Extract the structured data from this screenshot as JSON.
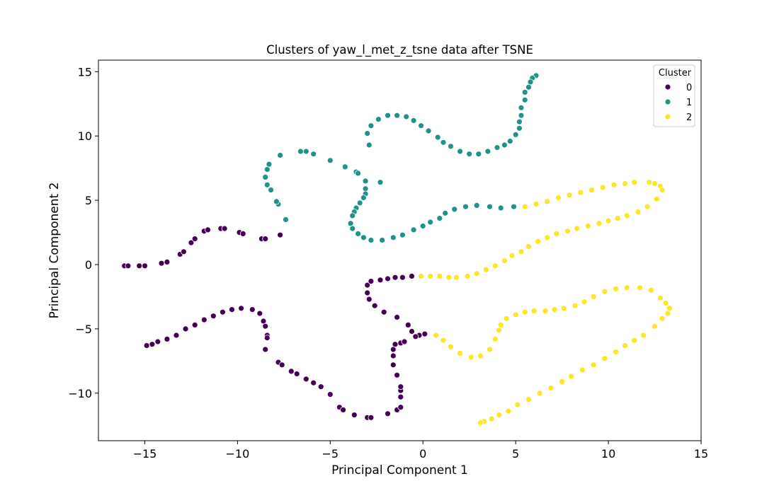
{
  "chart_data": {
    "type": "scatter",
    "title": "Clusters of yaw_l_met_z_tsne data after TSNE",
    "xlabel": "Principal Component 1",
    "ylabel": "Principal Component 2",
    "xlim": [
      -17.5,
      15
    ],
    "ylim": [
      -13.7,
      15.9
    ],
    "xticks": [
      -15,
      -10,
      -5,
      0,
      5,
      10,
      15
    ],
    "yticks": [
      -10,
      -5,
      0,
      5,
      10,
      15
    ],
    "xtick_labels": [
      "−15",
      "−10",
      "−5",
      "0",
      "5",
      "10",
      "15"
    ],
    "ytick_labels": [
      "−10",
      "−5",
      "0",
      "5",
      "10",
      "15"
    ],
    "grid": false,
    "legend": {
      "title": "Cluster",
      "placement": "top-right"
    },
    "series": [
      {
        "name": "0",
        "color": "#440154",
        "points": [
          [
            -16.1,
            -0.1
          ],
          [
            -15.9,
            -0.1
          ],
          [
            -15.3,
            -0.1
          ],
          [
            -15.0,
            -0.1
          ],
          [
            -14.1,
            0.1
          ],
          [
            -13.8,
            0.2
          ],
          [
            -13.1,
            0.8
          ],
          [
            -12.9,
            1.0
          ],
          [
            -12.5,
            1.7
          ],
          [
            -12.3,
            2.0
          ],
          [
            -11.8,
            2.6
          ],
          [
            -11.6,
            2.7
          ],
          [
            -10.9,
            2.8
          ],
          [
            -10.7,
            2.8
          ],
          [
            -9.9,
            2.5
          ],
          [
            -9.7,
            2.4
          ],
          [
            -8.7,
            2.0
          ],
          [
            -8.5,
            2.0
          ],
          [
            -7.7,
            2.3
          ],
          [
            -3.0,
            -1.6
          ],
          [
            -2.8,
            -1.3
          ],
          [
            -2.3,
            -1.2
          ],
          [
            -1.9,
            -1.1
          ],
          [
            -1.5,
            -1.0
          ],
          [
            -1.1,
            -1.0
          ],
          [
            -0.6,
            -0.9
          ],
          [
            -3.0,
            -2.2
          ],
          [
            -2.9,
            -2.7
          ],
          [
            -2.6,
            -3.2
          ],
          [
            -2.1,
            -3.7
          ],
          [
            -1.4,
            -4.1
          ],
          [
            -0.8,
            -4.7
          ],
          [
            -0.6,
            -5.2
          ],
          [
            -0.2,
            -5.5
          ],
          [
            0.1,
            -5.4
          ],
          [
            -14.9,
            -6.3
          ],
          [
            -14.6,
            -6.2
          ],
          [
            -14.3,
            -6.0
          ],
          [
            -13.8,
            -5.8
          ],
          [
            -13.3,
            -5.5
          ],
          [
            -12.8,
            -5.0
          ],
          [
            -12.3,
            -4.7
          ],
          [
            -11.8,
            -4.3
          ],
          [
            -11.3,
            -4.0
          ],
          [
            -10.8,
            -3.7
          ],
          [
            -10.3,
            -3.5
          ],
          [
            -9.8,
            -3.4
          ],
          [
            -9.2,
            -3.5
          ],
          [
            -8.8,
            -3.8
          ],
          [
            -8.6,
            -4.4
          ],
          [
            -8.5,
            -4.8
          ],
          [
            -8.4,
            -5.5
          ],
          [
            -8.4,
            -5.7
          ],
          [
            -8.5,
            -6.6
          ],
          [
            -7.8,
            -7.6
          ],
          [
            -7.6,
            -7.8
          ],
          [
            -7.1,
            -8.3
          ],
          [
            -6.8,
            -8.5
          ],
          [
            -6.3,
            -8.9
          ],
          [
            -5.9,
            -9.2
          ],
          [
            -5.5,
            -9.5
          ],
          [
            -5.0,
            -10.1
          ],
          [
            -4.5,
            -11.1
          ],
          [
            -4.3,
            -11.3
          ],
          [
            -3.7,
            -11.7
          ],
          [
            -3.0,
            -11.9
          ],
          [
            -2.8,
            -11.9
          ],
          [
            -1.9,
            -11.6
          ],
          [
            -1.4,
            -11.3
          ],
          [
            -1.2,
            -11.1
          ],
          [
            -1.2,
            -10.3
          ],
          [
            -1.2,
            -9.8
          ],
          [
            -1.2,
            -9.5
          ],
          [
            -1.4,
            -8.6
          ],
          [
            -1.6,
            -7.8
          ],
          [
            -1.6,
            -7.1
          ],
          [
            -1.6,
            -6.6
          ],
          [
            -1.5,
            -6.2
          ],
          [
            -1.2,
            -6.1
          ],
          [
            -1.0,
            -6.0
          ],
          [
            -0.4,
            -5.6
          ]
        ]
      },
      {
        "name": "1",
        "color": "#21918c",
        "points": [
          [
            6.1,
            14.7
          ],
          [
            5.9,
            14.5
          ],
          [
            5.8,
            14.2
          ],
          [
            5.7,
            13.8
          ],
          [
            5.5,
            13.4
          ],
          [
            5.5,
            12.8
          ],
          [
            5.3,
            12.2
          ],
          [
            5.3,
            11.6
          ],
          [
            5.2,
            11.1
          ],
          [
            5.2,
            10.6
          ],
          [
            5.0,
            10.1
          ],
          [
            4.7,
            9.6
          ],
          [
            4.4,
            9.3
          ],
          [
            4.0,
            9.1
          ],
          [
            3.5,
            8.8
          ],
          [
            3.0,
            8.6
          ],
          [
            2.5,
            8.6
          ],
          [
            2.0,
            8.8
          ],
          [
            1.5,
            9.2
          ],
          [
            1.1,
            9.5
          ],
          [
            0.8,
            9.9
          ],
          [
            0.3,
            10.4
          ],
          [
            -0.1,
            10.8
          ],
          [
            -0.5,
            11.2
          ],
          [
            -0.9,
            11.5
          ],
          [
            -1.4,
            11.6
          ],
          [
            -1.9,
            11.6
          ],
          [
            -2.4,
            11.3
          ],
          [
            -2.8,
            10.8
          ],
          [
            -3.0,
            10.2
          ],
          [
            -2.9,
            9.3
          ],
          [
            -2.3,
            6.4
          ],
          [
            -7.8,
            4.7
          ],
          [
            -7.9,
            4.9
          ],
          [
            -8.2,
            5.8
          ],
          [
            -8.4,
            6.2
          ],
          [
            -8.5,
            6.8
          ],
          [
            -8.4,
            7.4
          ],
          [
            -8.3,
            7.8
          ],
          [
            -7.7,
            8.5
          ],
          [
            -6.6,
            8.8
          ],
          [
            -6.3,
            8.8
          ],
          [
            -5.9,
            8.6
          ],
          [
            -5.0,
            8.1
          ],
          [
            -4.2,
            7.6
          ],
          [
            -3.6,
            7.2
          ],
          [
            -3.5,
            7.1
          ],
          [
            -3.1,
            6.5
          ],
          [
            -3.1,
            5.9
          ],
          [
            -3.1,
            5.5
          ],
          [
            -3.2,
            5.2
          ],
          [
            -3.4,
            4.8
          ],
          [
            -3.6,
            4.4
          ],
          [
            -3.7,
            4.1
          ],
          [
            -3.8,
            3.8
          ],
          [
            -3.9,
            3.2
          ],
          [
            -3.8,
            2.8
          ],
          [
            -3.5,
            2.4
          ],
          [
            -3.2,
            2.1
          ],
          [
            -2.8,
            1.9
          ],
          [
            -2.2,
            1.9
          ],
          [
            -1.6,
            2.1
          ],
          [
            -1.1,
            2.3
          ],
          [
            -0.5,
            2.7
          ],
          [
            0.0,
            3.0
          ],
          [
            0.4,
            3.3
          ],
          [
            0.9,
            3.6
          ],
          [
            1.2,
            4.0
          ],
          [
            1.7,
            4.3
          ],
          [
            2.3,
            4.5
          ],
          [
            2.9,
            4.6
          ],
          [
            3.6,
            4.5
          ],
          [
            4.2,
            4.4
          ],
          [
            4.9,
            4.5
          ],
          [
            -7.4,
            3.5
          ]
        ]
      },
      {
        "name": "2",
        "color": "#fde725",
        "points": [
          [
            5.5,
            4.5
          ],
          [
            6.1,
            4.7
          ],
          [
            6.7,
            4.9
          ],
          [
            7.3,
            5.2
          ],
          [
            7.9,
            5.4
          ],
          [
            8.5,
            5.6
          ],
          [
            9.1,
            5.8
          ],
          [
            9.7,
            6.0
          ],
          [
            10.3,
            6.2
          ],
          [
            10.9,
            6.3
          ],
          [
            11.4,
            6.4
          ],
          [
            12.2,
            6.4
          ],
          [
            12.5,
            6.3
          ],
          [
            12.8,
            6.1
          ],
          [
            12.9,
            5.8
          ],
          [
            12.6,
            5.1
          ],
          [
            12.1,
            4.5
          ],
          [
            11.6,
            4.1
          ],
          [
            11.0,
            3.8
          ],
          [
            10.5,
            3.6
          ],
          [
            10.0,
            3.4
          ],
          [
            9.5,
            3.2
          ],
          [
            8.9,
            3.0
          ],
          [
            8.3,
            2.8
          ],
          [
            7.8,
            2.6
          ],
          [
            7.2,
            2.4
          ],
          [
            6.7,
            2.1
          ],
          [
            6.2,
            1.8
          ],
          [
            5.7,
            1.4
          ],
          [
            5.3,
            1.0
          ],
          [
            4.8,
            0.7
          ],
          [
            4.4,
            0.3
          ],
          [
            3.9,
            -0.1
          ],
          [
            3.4,
            -0.4
          ],
          [
            2.9,
            -0.7
          ],
          [
            2.4,
            -0.9
          ],
          [
            1.8,
            -1.0
          ],
          [
            1.4,
            -1.0
          ],
          [
            0.9,
            -0.9
          ],
          [
            0.4,
            -0.9
          ],
          [
            -0.1,
            -0.9
          ],
          [
            0.7,
            -5.5
          ],
          [
            1.1,
            -5.9
          ],
          [
            1.5,
            -6.4
          ],
          [
            2.0,
            -6.9
          ],
          [
            2.6,
            -7.2
          ],
          [
            3.1,
            -7.1
          ],
          [
            3.6,
            -6.6
          ],
          [
            3.9,
            -5.8
          ],
          [
            4.1,
            -5.1
          ],
          [
            4.2,
            -4.7
          ],
          [
            4.5,
            -4.2
          ],
          [
            5.0,
            -3.9
          ],
          [
            5.5,
            -3.7
          ],
          [
            6.0,
            -3.6
          ],
          [
            6.6,
            -3.6
          ],
          [
            7.1,
            -3.5
          ],
          [
            7.6,
            -3.4
          ],
          [
            8.2,
            -3.2
          ],
          [
            8.7,
            -2.9
          ],
          [
            9.2,
            -2.5
          ],
          [
            9.8,
            -2.1
          ],
          [
            10.4,
            -1.9
          ],
          [
            11.0,
            -1.8
          ],
          [
            11.7,
            -1.8
          ],
          [
            12.3,
            -2.0
          ],
          [
            12.8,
            -2.6
          ],
          [
            13.1,
            -3.0
          ],
          [
            13.3,
            -3.4
          ],
          [
            13.2,
            -3.8
          ],
          [
            12.9,
            -4.2
          ],
          [
            12.5,
            -4.8
          ],
          [
            11.9,
            -5.5
          ],
          [
            11.4,
            -5.9
          ],
          [
            10.9,
            -6.3
          ],
          [
            10.4,
            -6.8
          ],
          [
            9.8,
            -7.3
          ],
          [
            9.2,
            -7.8
          ],
          [
            8.6,
            -8.2
          ],
          [
            8.0,
            -8.7
          ],
          [
            7.5,
            -9.1
          ],
          [
            6.9,
            -9.6
          ],
          [
            6.3,
            -10.0
          ],
          [
            5.7,
            -10.5
          ],
          [
            5.1,
            -10.9
          ],
          [
            4.6,
            -11.4
          ],
          [
            4.1,
            -11.7
          ],
          [
            3.7,
            -12.0
          ],
          [
            3.3,
            -12.2
          ],
          [
            3.1,
            -12.3
          ]
        ]
      }
    ]
  }
}
